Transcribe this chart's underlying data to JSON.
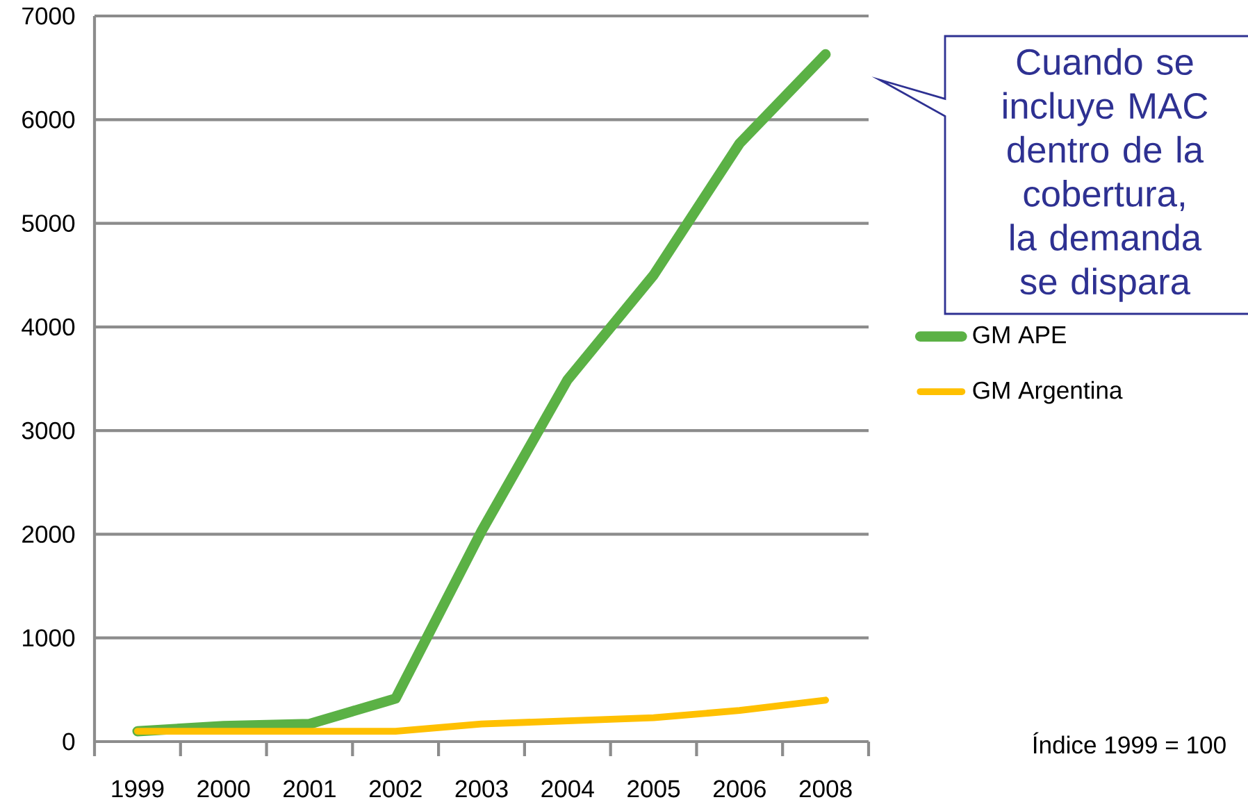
{
  "chart_data": {
    "type": "line",
    "categories": [
      "1999",
      "2000",
      "2001",
      "2002",
      "2003",
      "2004",
      "2005",
      "2006",
      "2008"
    ],
    "series": [
      {
        "name": "GM APE",
        "color": "#5bb145",
        "values": [
          100,
          150,
          170,
          415,
          2030,
          3490,
          4500,
          5770,
          6630
        ]
      },
      {
        "name": "GM Argentina",
        "color": "#ffc000",
        "values": [
          100,
          100,
          100,
          100,
          170,
          200,
          230,
          300,
          400
        ]
      }
    ],
    "ylim": [
      0,
      7000
    ],
    "yticks": [
      0,
      1000,
      2000,
      3000,
      4000,
      5000,
      6000,
      7000
    ],
    "grid": "y",
    "legend": "right",
    "annotations": [
      "Cuando se incluye MAC dentro de la cobertura, la demanda se dispara",
      "Índice 1999 = 100"
    ]
  }
}
